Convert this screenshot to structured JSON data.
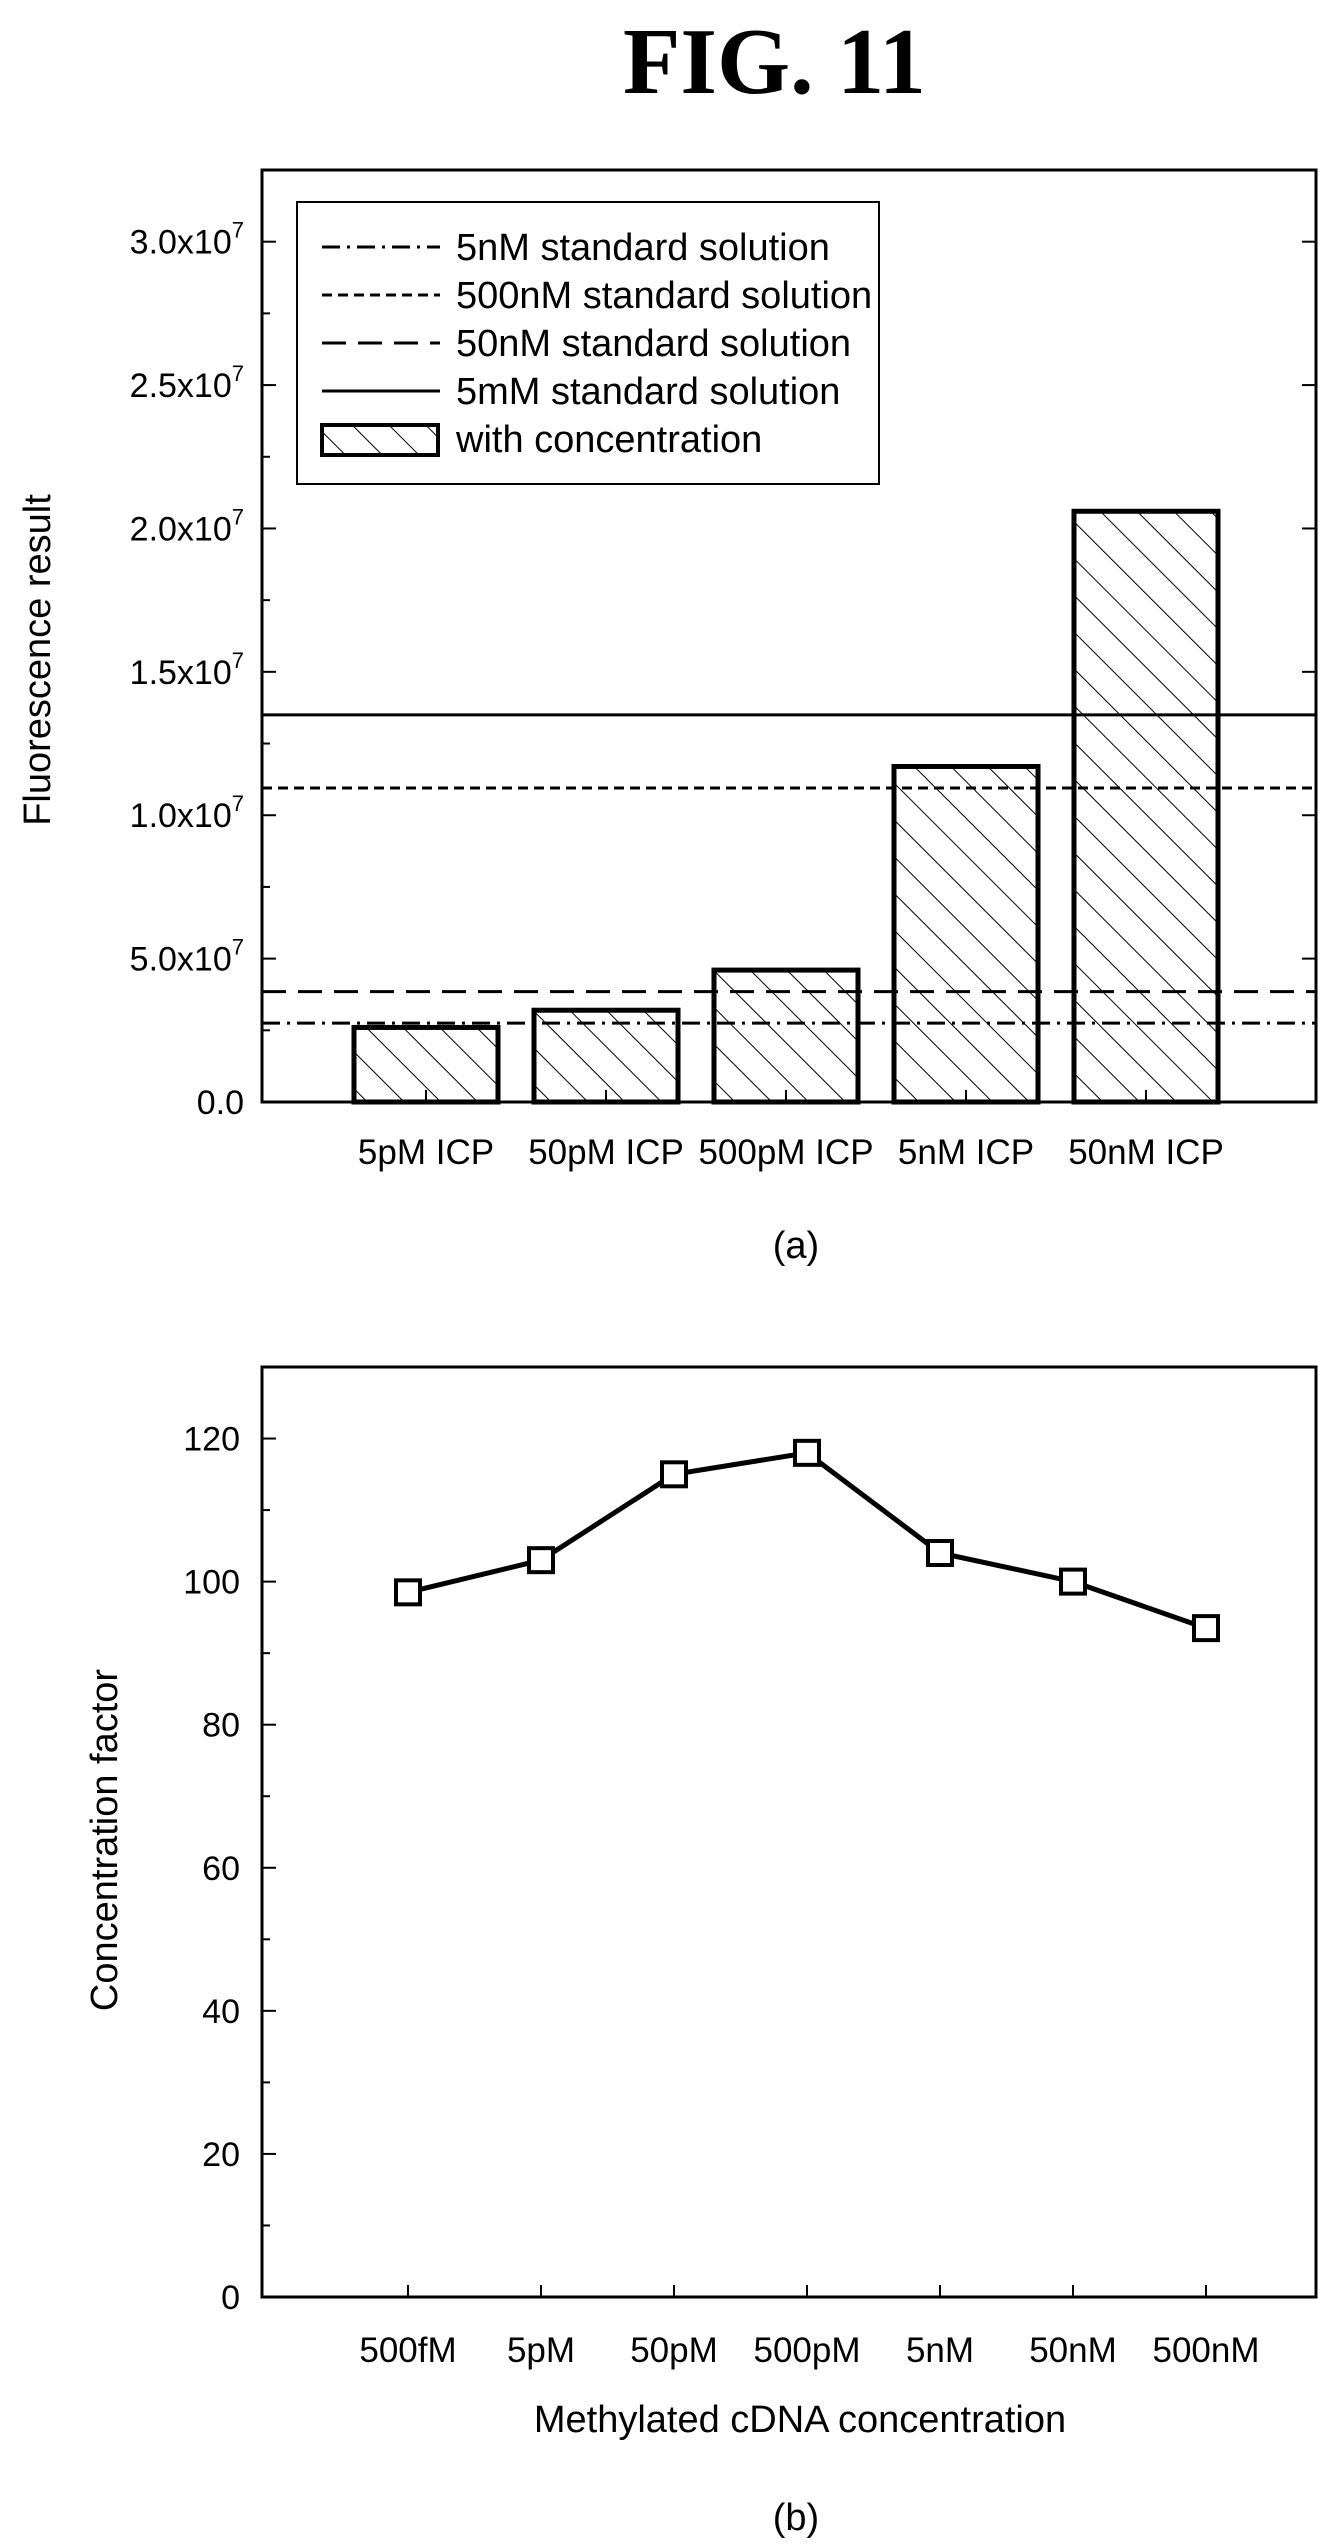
{
  "figure": {
    "title": "FIG. 11"
  },
  "chart_data": [
    {
      "type": "bar",
      "panel_label": "(a)",
      "xlabel": "",
      "ylabel": "Fluorescence result",
      "ylim": [
        0,
        32500000
      ],
      "y_ticks": [
        {
          "value": 0,
          "mantissa": "0.0",
          "exp": ""
        },
        {
          "value": 5000000,
          "mantissa": "5.0x10",
          "exp": "7"
        },
        {
          "value": 10000000,
          "mantissa": "1.0x10",
          "exp": "7"
        },
        {
          "value": 15000000,
          "mantissa": "1.5x10",
          "exp": "7"
        },
        {
          "value": 20000000,
          "mantissa": "2.0x10",
          "exp": "7"
        },
        {
          "value": 25000000,
          "mantissa": "2.5x10",
          "exp": "7"
        },
        {
          "value": 30000000,
          "mantissa": "3.0x10",
          "exp": "7"
        }
      ],
      "categories": [
        "5pM ICP",
        "50pM ICP",
        "500pM ICP",
        "5nM ICP",
        "50nM ICP"
      ],
      "series": [
        {
          "name": "with concentration",
          "values": [
            2600000,
            3200000,
            4600000,
            11700000,
            20600000
          ]
        }
      ],
      "reference_lines": [
        {
          "name": "5nM standard solution",
          "value": 2750000,
          "style": "dash-dot"
        },
        {
          "name": "500nM standard solution",
          "value": 10950000,
          "style": "short-dash"
        },
        {
          "name": "50nM standard solution",
          "value": 3850000,
          "style": "long-dash"
        },
        {
          "name": "5mM standard solution",
          "value": 13500000,
          "style": "solid"
        }
      ],
      "legend_position": "top-left"
    },
    {
      "type": "line",
      "panel_label": "(b)",
      "xlabel": "Methylated cDNA concentration",
      "ylabel": "Concentration factor",
      "ylim": [
        0,
        130
      ],
      "y_ticks": [
        0,
        20,
        40,
        60,
        80,
        100,
        120
      ],
      "categories": [
        "500fM",
        "5pM",
        "50pM",
        "500pM",
        "5nM",
        "50nM",
        "500nM"
      ],
      "series": [
        {
          "values": [
            98.5,
            103,
            115,
            118,
            104,
            100,
            93.5
          ],
          "marker": "square"
        }
      ]
    }
  ]
}
